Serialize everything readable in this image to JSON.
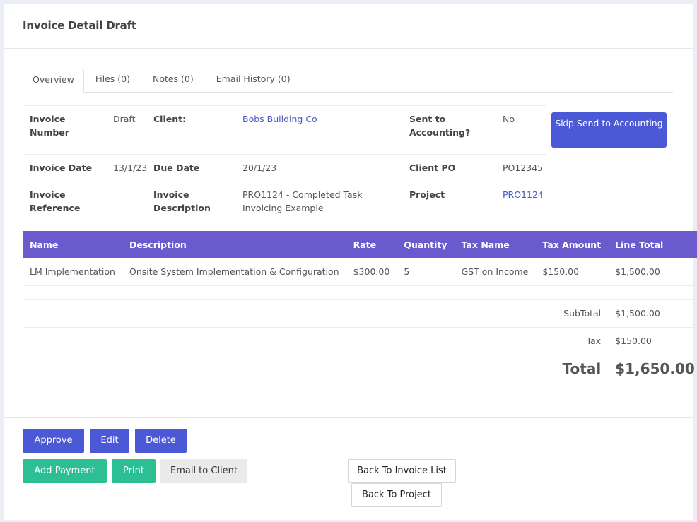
{
  "header": {
    "title": "Invoice Detail Draft"
  },
  "tabs": [
    {
      "label": "Overview",
      "active": true
    },
    {
      "label": "Files (0)",
      "active": false
    },
    {
      "label": "Notes (0)",
      "active": false
    },
    {
      "label": "Email History (0)",
      "active": false
    }
  ],
  "info": {
    "invoice_number_label": "Invoice Number",
    "invoice_number_value": "Draft",
    "client_label": "Client:",
    "client_value": "Bobs Building Co",
    "sent_label": "Sent to Accounting?",
    "sent_value": "No",
    "invoice_date_label": "Invoice Date",
    "invoice_date_value": "13/1/23",
    "due_date_label": "Due Date",
    "due_date_value": "20/1/23",
    "client_po_label": "Client PO",
    "client_po_value": "PO12345",
    "reference_label": "Invoice Reference",
    "reference_value": "",
    "description_label": "Invoice Description",
    "description_value": "PRO1124 - Completed Task Invoicing Example",
    "project_label": "Project",
    "project_value": "PRO1124"
  },
  "skip_button": "Skip Send to Accounting",
  "lines": {
    "headers": [
      "Name",
      "Description",
      "Rate",
      "Quantity",
      "Tax Name",
      "Tax Amount",
      "Line Total"
    ],
    "rows": [
      [
        "LM Implementation",
        "Onsite System Implementation & Configuration",
        "$300.00",
        "5",
        "GST on Income",
        "$150.00",
        "$1,500.00"
      ]
    ]
  },
  "totals": {
    "subtotal_label": "SubTotal",
    "subtotal_value": "$1,500.00",
    "tax_label": "Tax",
    "tax_value": "$150.00",
    "total_label": "Total",
    "total_value": "$1,650.00"
  },
  "actions": {
    "approve": "Approve",
    "edit": "Edit",
    "delete": "Delete",
    "add_payment": "Add Payment",
    "print": "Print",
    "email_client": "Email to Client",
    "back_invoice_list": "Back To Invoice List",
    "back_project": "Back To Project"
  },
  "colors": {
    "primary": "#4c59d6",
    "table_header": "#6a5acd",
    "success": "#2dbf94",
    "link": "#4756c8"
  }
}
